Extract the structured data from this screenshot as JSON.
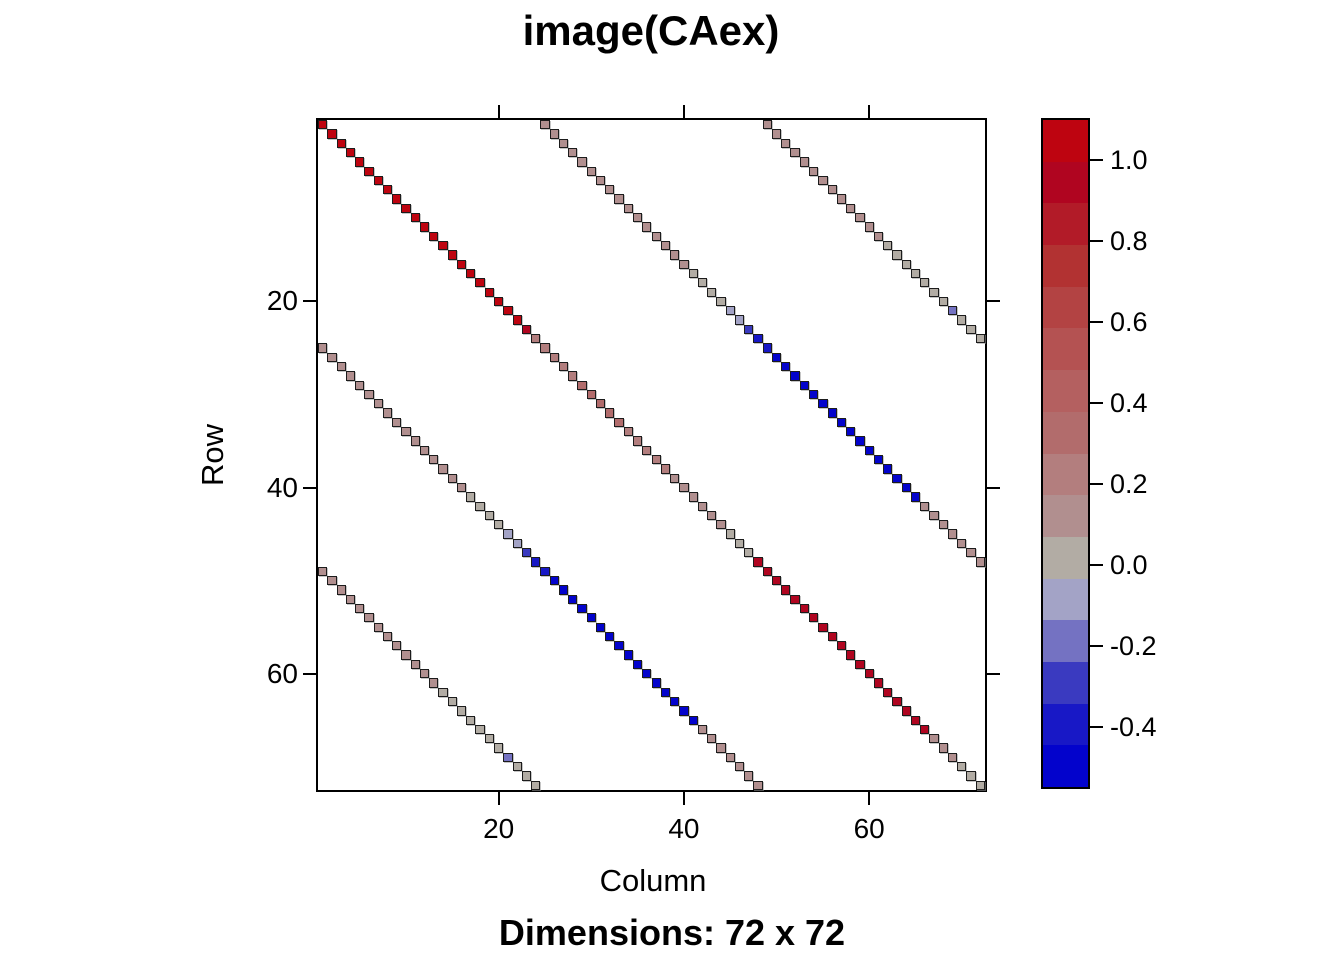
{
  "chart_data": {
    "type": "heatmap",
    "title": "image(CAex)",
    "caption": "Dimensions: 72 x 72",
    "xlabel": "Column",
    "ylabel": "Row",
    "dims": [
      72,
      72
    ],
    "x_ticks": [
      20,
      40,
      60
    ],
    "y_ticks": [
      20,
      40,
      60
    ],
    "x_tick_labels": [
      "20",
      "40",
      "60"
    ],
    "y_tick_labels": [
      "20",
      "40",
      "60"
    ],
    "background_value_color": "#ffffff",
    "colorbar": {
      "vmin": -0.548,
      "vmax": 1.1,
      "levels": 16,
      "ticks": [
        1.0,
        0.8,
        0.6,
        0.4,
        0.2,
        0.0,
        -0.2,
        -0.4
      ],
      "tick_labels": [
        "1.0",
        "0.8",
        "0.6",
        "0.4",
        "0.2",
        "0.0",
        "-0.2",
        "-0.4"
      ],
      "colors_top_to_bottom": [
        "#BE0410",
        "#B00520",
        "#B21B28",
        "#B23232",
        "#B34343",
        "#B45252",
        "#B46060",
        "#B26C6C",
        "#B37E7E",
        "#B18F8F",
        "#B2ACA4",
        "#A3A3C6",
        "#7472C2",
        "#3A3AC0",
        "#1818C6",
        "#0303CC"
      ]
    },
    "diagonals": [
      {
        "offset": 0,
        "values": [
          1.05,
          1.05,
          1.05,
          1.05,
          1.05,
          1.05,
          1.05,
          1.05,
          1.05,
          1.05,
          1.05,
          1.05,
          1.05,
          1.05,
          1.05,
          1.05,
          1.05,
          1.05,
          1.05,
          1.05,
          1.05,
          1.0,
          0.93,
          0.18,
          0.2,
          0.22,
          0.24,
          0.26,
          0.28,
          0.3,
          0.31,
          0.3,
          0.28,
          0.26,
          0.24,
          0.22,
          0.2,
          0.18,
          0.16,
          0.14,
          0.12,
          0.1,
          0.09,
          0.08,
          0.07,
          0.06,
          0.06,
          0.95,
          0.95,
          0.95,
          0.95,
          0.95,
          0.95,
          0.95,
          0.95,
          0.95,
          0.95,
          0.95,
          0.95,
          0.95,
          0.95,
          0.95,
          0.95,
          0.95,
          0.95,
          0.9,
          0.12,
          0.1,
          0.08,
          0.07,
          0.06,
          0.05
        ]
      },
      {
        "offset": 24,
        "values": [
          0.12,
          0.11,
          0.11,
          0.1,
          0.1,
          0.1,
          0.1,
          0.1,
          0.1,
          0.1,
          0.1,
          0.1,
          0.09,
          0.09,
          0.08,
          0.08,
          0.07,
          0.06,
          0.04,
          0.01,
          -0.05,
          -0.12,
          -0.25,
          -0.35,
          -0.42,
          -0.45,
          -0.47,
          -0.52,
          -0.52,
          -0.52,
          -0.52,
          -0.52,
          -0.52,
          -0.52,
          -0.52,
          -0.52,
          -0.52,
          -0.52,
          -0.52,
          -0.52,
          -0.52,
          0.08,
          0.09,
          0.1,
          0.1,
          0.11,
          0.11,
          0.12
        ]
      },
      {
        "offset": -24,
        "values": [
          0.12,
          0.11,
          0.11,
          0.1,
          0.1,
          0.1,
          0.1,
          0.1,
          0.1,
          0.1,
          0.1,
          0.1,
          0.09,
          0.09,
          0.08,
          0.08,
          0.07,
          0.06,
          0.04,
          0.01,
          -0.05,
          -0.12,
          -0.25,
          -0.35,
          -0.42,
          -0.45,
          -0.47,
          -0.52,
          -0.52,
          -0.52,
          -0.52,
          -0.52,
          -0.52,
          -0.52,
          -0.52,
          -0.52,
          -0.52,
          -0.52,
          -0.52,
          -0.52,
          -0.52,
          0.08,
          0.09,
          0.1,
          0.1,
          0.11,
          0.11,
          0.12
        ]
      },
      {
        "offset": 48,
        "values": [
          0.1,
          0.1,
          0.1,
          0.1,
          0.1,
          0.1,
          0.09,
          0.09,
          0.09,
          0.08,
          0.08,
          0.08,
          0.08,
          0.07,
          0.07,
          0.06,
          0.05,
          0.04,
          0.02,
          0.0,
          -0.22,
          0.02,
          0.05,
          0.07
        ]
      },
      {
        "offset": -48,
        "values": [
          0.1,
          0.1,
          0.1,
          0.1,
          0.1,
          0.1,
          0.09,
          0.09,
          0.09,
          0.08,
          0.08,
          0.08,
          0.08,
          0.07,
          0.07,
          0.06,
          0.05,
          0.04,
          0.02,
          0.0,
          -0.22,
          0.02,
          0.05,
          0.07
        ]
      }
    ]
  }
}
